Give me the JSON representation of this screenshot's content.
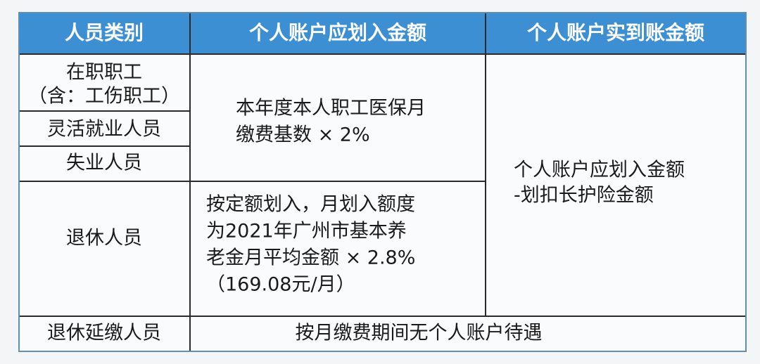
{
  "table": {
    "header": [
      "人员类别",
      "个人账户应划入金额",
      "个人账户实到账金额"
    ],
    "categories": [
      [
        "在职职工",
        "（含：工伤职工）"
      ],
      [
        "灵活就业人员"
      ],
      [
        "失业人员"
      ],
      [
        "退休人员"
      ],
      [
        "退休延缴人员"
      ]
    ],
    "employee_amount": [
      "本年度本人职工医保月",
      "缴费基数 × 2%"
    ],
    "retiree_amount": [
      "按定额划入，月划入额度",
      "为2021年广州市基本养",
      "老金月平均金额 × 2.8%",
      "（169.08元/月）"
    ],
    "actual_amount": [
      "个人账户应划入金额",
      "-划扣长护险金额"
    ],
    "deferred_note": "按月缴费期间无个人账户待遇"
  }
}
